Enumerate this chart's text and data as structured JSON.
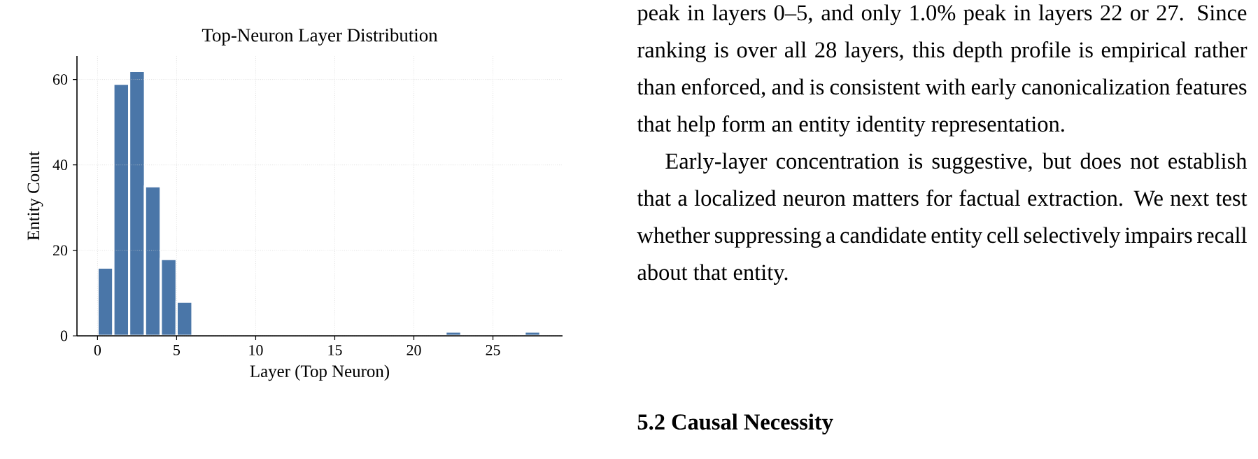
{
  "chart_data": {
    "type": "histogram",
    "title": "Top-Neuron Layer Distribution",
    "xlabel": "Layer (Top Neuron)",
    "ylabel": "Entity Count",
    "bins": [
      0,
      1,
      2,
      3,
      4,
      5,
      6,
      7,
      8,
      9,
      10,
      11,
      12,
      13,
      14,
      15,
      16,
      17,
      18,
      19,
      20,
      21,
      22,
      23,
      24,
      25,
      26,
      27,
      28
    ],
    "values": [
      16,
      59,
      62,
      35,
      18,
      8,
      0,
      0,
      0,
      0,
      0,
      0,
      0,
      0,
      0,
      0,
      0,
      0,
      0,
      0,
      0,
      0,
      1,
      0,
      0,
      0,
      0,
      1
    ],
    "color": "#4a76a8",
    "xlim": [
      -1.3,
      29.4
    ],
    "ylim": [
      0,
      65.5
    ],
    "xticks": [
      0,
      5,
      10,
      15,
      20,
      25
    ],
    "yticks": [
      0,
      20,
      40,
      60
    ],
    "grid": true,
    "annotations": [
      "peak in layers 0–5, and only 1.0% peak in layers 22 or 27. Since ranking is over all 28 layers, this depth profile is empirical rather than enforced, and is consistent with early canonicalization features that help form an entity identity representation.",
      "Early-layer concentration is suggestive, but does not establish that a localized neuron matters for factual extraction. We next test whether suppressing a candidate entity cell selectively impairs recall about that entity.",
      "5.2 Causal Necessity"
    ]
  }
}
